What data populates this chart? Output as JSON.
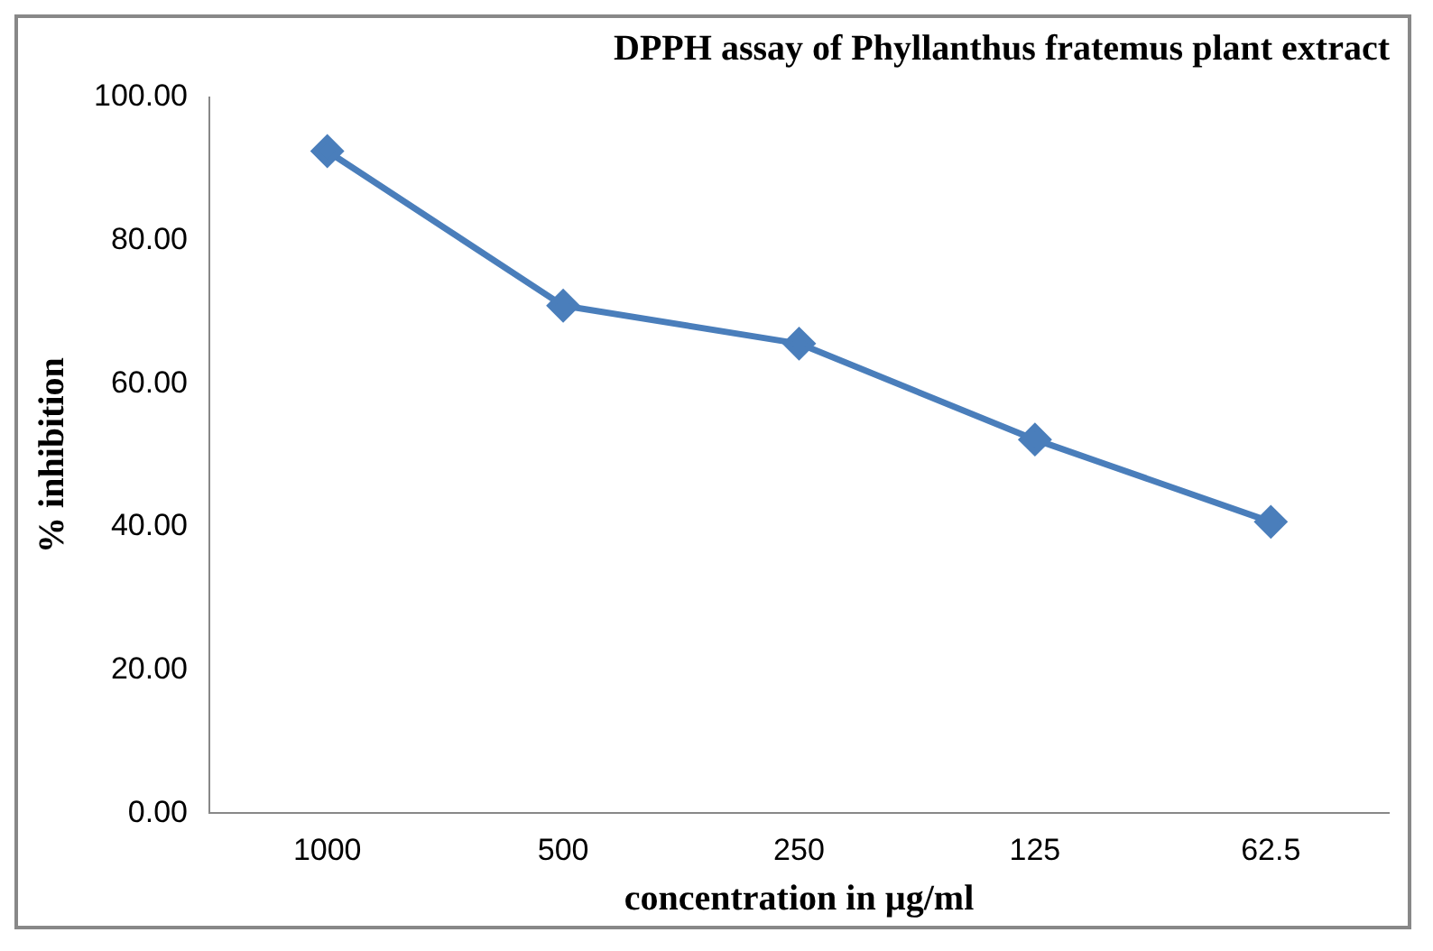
{
  "chart_data": {
    "type": "line",
    "title": "DPPH assay of Phyllanthus fratemus plant extract",
    "xlabel": "concentration in µg/ml",
    "ylabel": "% inhibition",
    "categories": [
      "1000",
      "500",
      "250",
      "125",
      "62.5"
    ],
    "series": [
      {
        "color": "#4a7ebb",
        "values": [
          92.5,
          70.9,
          65.6,
          52.2,
          40.7
        ]
      }
    ],
    "ylim": [
      0,
      100
    ],
    "yticks": [
      {
        "value": 0,
        "label": "0.00"
      },
      {
        "value": 20,
        "label": "20.00"
      },
      {
        "value": 40,
        "label": "40.00"
      },
      {
        "value": 60,
        "label": "60.00"
      },
      {
        "value": 80,
        "label": "80.00"
      },
      {
        "value": 100,
        "label": "100.00"
      }
    ],
    "grid": false,
    "marker": "diamond",
    "line_style": "solid"
  }
}
